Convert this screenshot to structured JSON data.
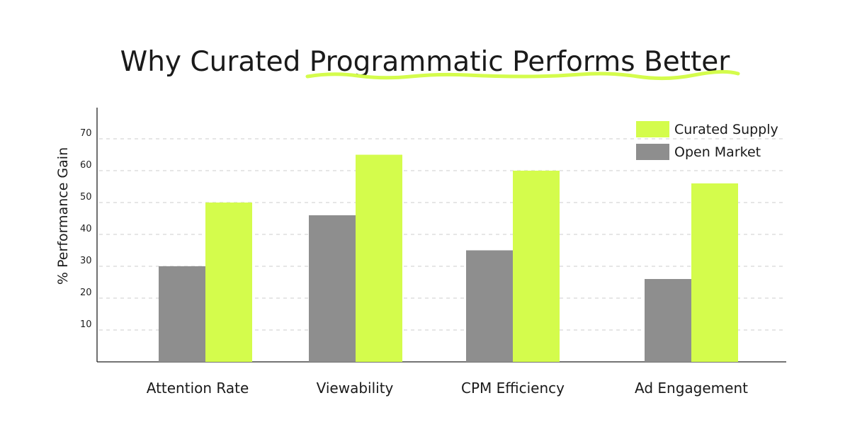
{
  "colors": {
    "curated": "#d4fc4c",
    "open": "#8e8e8e",
    "underline": "#d4fc4c",
    "grid": "#cccccc",
    "axis": "#222222"
  },
  "chart_data": {
    "type": "bar",
    "title": "Why Curated Programmatic Performs Better",
    "title_highlight": "Programmatic",
    "ylabel": "% Performance Gain",
    "xlabel": "",
    "ylim": [
      0,
      80
    ],
    "yticks": [
      10,
      20,
      30,
      40,
      50,
      60,
      70
    ],
    "grid": true,
    "legend_position": "top-right",
    "categories": [
      "Attention Rate",
      "Viewability",
      "CPM Efficiency",
      "Ad Engagement"
    ],
    "series": [
      {
        "name": "Open Market",
        "values": [
          30,
          46,
          35,
          26
        ]
      },
      {
        "name": "Curated Supply",
        "values": [
          50,
          65,
          60,
          56
        ]
      }
    ]
  }
}
